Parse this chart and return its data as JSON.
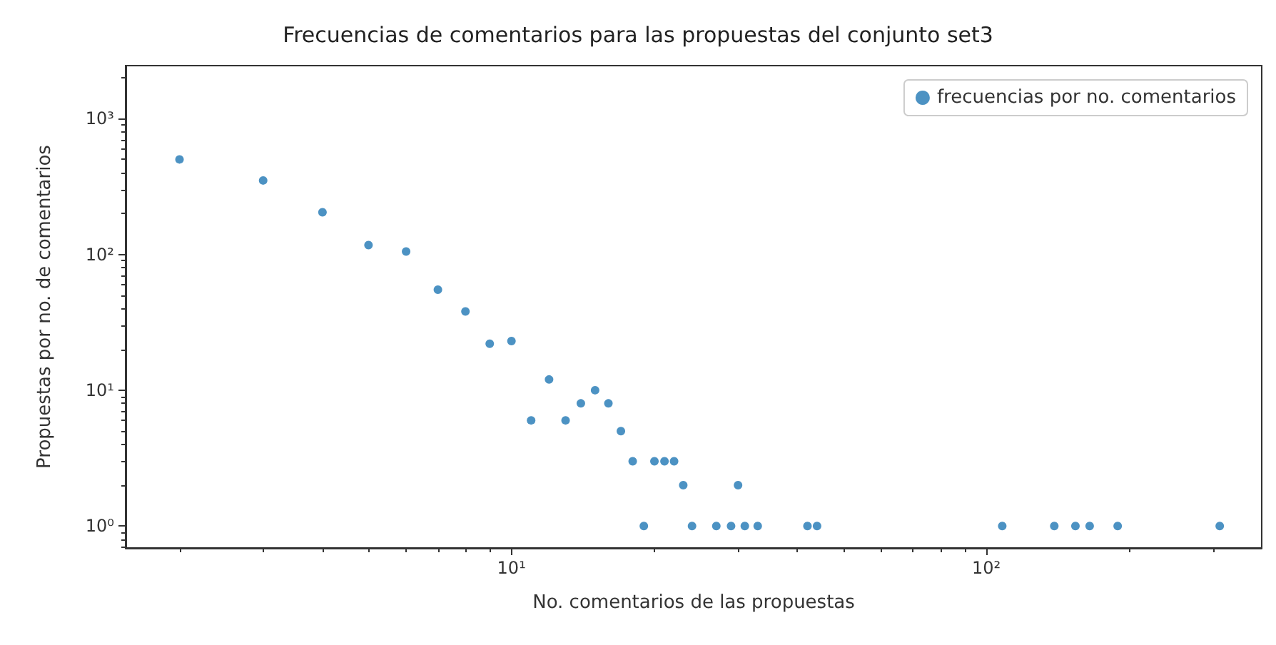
{
  "chart_data": {
    "type": "scatter",
    "title": "Frecuencias de comentarios para las propuestas del conjunto set3",
    "xlabel": "No. comentarios de las propuestas",
    "ylabel": "Propuestas por no. de comentarios",
    "series": [
      {
        "name": "frecuencias por no. comentarios",
        "color": "#1f77b4",
        "x": [
          2,
          3,
          4,
          5,
          6,
          7,
          8,
          9,
          10,
          11,
          12,
          13,
          14,
          15,
          16,
          17,
          18,
          19,
          20,
          21,
          22,
          23,
          24,
          27,
          29,
          30,
          31,
          33,
          42,
          44,
          108,
          139,
          154,
          165,
          189,
          310
        ],
        "values": [
          500,
          350,
          204,
          117,
          105,
          55,
          38,
          22,
          23,
          6,
          12,
          6,
          8,
          10,
          8,
          5,
          3,
          1,
          3,
          3,
          3,
          2,
          1,
          1,
          1,
          2,
          1,
          1,
          1,
          1,
          1,
          1,
          1,
          1,
          1,
          1
        ]
      }
    ],
    "log": "xy",
    "xlim": [
      1.54,
      380
    ],
    "ylim": [
      0.69,
      2450
    ],
    "xticks": [
      {
        "value": 10,
        "label": "10¹"
      },
      {
        "value": 100,
        "label": "10²"
      }
    ],
    "yticks": [
      {
        "value": 1,
        "label": "10⁰"
      },
      {
        "value": 10,
        "label": "10¹"
      },
      {
        "value": 100,
        "label": "10²"
      },
      {
        "value": 1000,
        "label": "10³"
      }
    ],
    "legend": "top right",
    "marker": "circle",
    "grid": false
  }
}
